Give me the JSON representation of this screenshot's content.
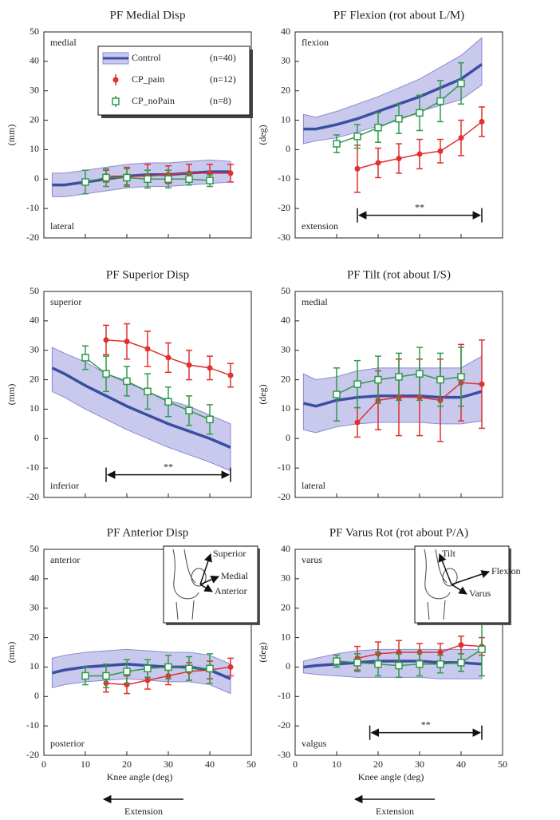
{
  "chart_data": [
    {
      "type": "line",
      "title": "PF Medial Disp",
      "ylabel": "(mm)",
      "top_label": "medial",
      "bottom_label": "lateral",
      "xlim": [
        0,
        50
      ],
      "xticks": [
        0,
        10,
        20,
        30,
        40,
        50
      ],
      "show_xtick_labels": false,
      "ylim": [
        -20,
        50
      ],
      "yticks": [
        -20,
        -10,
        0,
        10,
        20,
        30,
        40,
        50
      ],
      "legend": "upper right",
      "series": [
        {
          "name": "Control",
          "count": "(n=40)",
          "color": "#3a4fa0",
          "marker": "band",
          "x": [
            2,
            5,
            10,
            15,
            20,
            25,
            30,
            35,
            40,
            45
          ],
          "values": [
            -2,
            -2,
            -1,
            0,
            1,
            1.5,
            1.5,
            2,
            2.5,
            2.5
          ],
          "lower": [
            -6,
            -6,
            -5,
            -4,
            -3,
            -2.5,
            -2.5,
            -2,
            -1.5,
            -1
          ],
          "upper": [
            2,
            2,
            3,
            4,
            5,
            5.5,
            5.5,
            6,
            6.5,
            6
          ]
        },
        {
          "name": "CP_pain",
          "count": "(n=12)",
          "color": "#e03030",
          "marker": "circle",
          "x": [
            15,
            20,
            25,
            30,
            35,
            40,
            45
          ],
          "values": [
            1,
            1,
            1,
            1.5,
            2,
            2,
            2
          ],
          "errors": [
            2,
            3,
            4,
            3,
            3,
            3,
            3
          ]
        },
        {
          "name": "CP_noPain",
          "count": "(n=8)",
          "color": "#2e9a4a",
          "marker": "square",
          "x": [
            10,
            15,
            20,
            25,
            30,
            35,
            40
          ],
          "values": [
            -1,
            0.5,
            0.5,
            0,
            0,
            0,
            -0.5
          ],
          "errors": [
            4,
            3,
            3,
            3,
            3,
            2,
            2
          ]
        }
      ]
    },
    {
      "type": "line",
      "title": "PF Flexion (rot about L/M)",
      "ylabel": "(deg)",
      "top_label": "flexion",
      "bottom_label": "extension",
      "xlim": [
        0,
        50
      ],
      "xticks": [
        0,
        10,
        20,
        30,
        40,
        50
      ],
      "show_xtick_labels": false,
      "ylim": [
        -30,
        40
      ],
      "yticks": [
        -30,
        -20,
        -10,
        0,
        10,
        20,
        30,
        40
      ],
      "significance": {
        "label": "**",
        "x": [
          15,
          45
        ]
      },
      "series": [
        {
          "color": "#3a4fa0",
          "marker": "band",
          "x": [
            2,
            5,
            10,
            15,
            20,
            25,
            30,
            35,
            40,
            45
          ],
          "values": [
            7,
            7,
            8.5,
            10.5,
            13,
            15.5,
            18,
            21,
            24,
            29
          ],
          "lower": [
            2,
            3,
            4,
            6,
            8,
            10,
            13,
            15,
            17,
            22
          ],
          "upper": [
            12,
            11,
            13,
            15.5,
            18,
            21,
            24,
            28,
            32,
            38
          ]
        },
        {
          "color": "#e03030",
          "marker": "circle",
          "x": [
            15,
            20,
            25,
            30,
            35,
            40,
            45
          ],
          "values": [
            -6.5,
            -4.5,
            -3,
            -1.5,
            -0.5,
            4,
            9.5
          ],
          "errors": [
            8,
            5,
            5,
            5,
            4,
            6,
            5
          ]
        },
        {
          "color": "#2e9a4a",
          "marker": "square",
          "x": [
            10,
            15,
            20,
            25,
            30,
            35,
            40
          ],
          "values": [
            2,
            4.5,
            7.5,
            10.5,
            12.5,
            16.5,
            22.5
          ],
          "errors": [
            3,
            4,
            5,
            5,
            6,
            7,
            7
          ]
        }
      ]
    },
    {
      "type": "line",
      "title": "PF Superior Disp",
      "ylabel": "(mm)",
      "top_label": "superior",
      "bottom_label": "inferior",
      "xlim": [
        0,
        50
      ],
      "xticks": [
        0,
        10,
        20,
        30,
        40,
        50
      ],
      "show_xtick_labels": false,
      "ylim": [
        -20,
        50
      ],
      "yticks": [
        -20,
        -10,
        0,
        10,
        20,
        30,
        40,
        50
      ],
      "significance": {
        "label": "**",
        "x": [
          15,
          45
        ]
      },
      "series": [
        {
          "color": "#3a4fa0",
          "marker": "band",
          "x": [
            2,
            5,
            10,
            15,
            20,
            25,
            30,
            35,
            40,
            45
          ],
          "values": [
            24,
            22,
            18,
            14.5,
            11,
            8,
            5,
            2.5,
            0,
            -3
          ],
          "lower": [
            16,
            14,
            10,
            6.5,
            3,
            0,
            -3,
            -5.5,
            -8,
            -11
          ],
          "upper": [
            31,
            29,
            26,
            22,
            19,
            16,
            13,
            11,
            8,
            5
          ]
        },
        {
          "color": "#e03030",
          "marker": "circle",
          "x": [
            15,
            20,
            25,
            30,
            35,
            40,
            45
          ],
          "values": [
            33.5,
            33,
            30.5,
            27.5,
            25,
            24,
            21.5
          ],
          "errors": [
            5,
            6,
            6,
            5,
            5,
            4,
            4
          ]
        },
        {
          "color": "#2e9a4a",
          "marker": "square",
          "x": [
            10,
            15,
            20,
            25,
            30,
            35,
            40
          ],
          "values": [
            27.5,
            22,
            19.5,
            16,
            12.5,
            9.5,
            6.5
          ],
          "errors": [
            4,
            6,
            5,
            6,
            5,
            5,
            5
          ]
        }
      ]
    },
    {
      "type": "line",
      "title": "PF Tilt (rot about I/S)",
      "ylabel": "(deg)",
      "top_label": "medial",
      "bottom_label": "lateral",
      "xlim": [
        0,
        50
      ],
      "xticks": [
        0,
        10,
        20,
        30,
        40,
        50
      ],
      "show_xtick_labels": false,
      "ylim": [
        -20,
        50
      ],
      "yticks": [
        -20,
        -10,
        0,
        10,
        20,
        30,
        40,
        50
      ],
      "series": [
        {
          "color": "#3a4fa0",
          "marker": "band",
          "x": [
            2,
            5,
            10,
            15,
            20,
            25,
            30,
            35,
            40,
            45
          ],
          "values": [
            12,
            11,
            13,
            14,
            14.5,
            14.5,
            14.5,
            14,
            14,
            16
          ],
          "lower": [
            3,
            2,
            4,
            5,
            5.5,
            5.5,
            5.5,
            5,
            5,
            6
          ],
          "upper": [
            22,
            20,
            21,
            23,
            24,
            24,
            24,
            24,
            24,
            28
          ]
        },
        {
          "color": "#e03030",
          "marker": "circle",
          "x": [
            15,
            20,
            25,
            30,
            35,
            40,
            45
          ],
          "values": [
            5.5,
            13,
            14,
            14,
            13,
            19,
            18.5
          ],
          "errors": [
            5,
            10,
            13,
            13,
            14,
            13,
            15
          ]
        },
        {
          "color": "#2e9a4a",
          "marker": "square",
          "x": [
            10,
            15,
            20,
            25,
            30,
            35,
            40
          ],
          "values": [
            15,
            18.5,
            20,
            21,
            22,
            20,
            21
          ],
          "errors": [
            9,
            8,
            8,
            8,
            9,
            9,
            10
          ]
        }
      ]
    },
    {
      "type": "line",
      "title": "PF Anterior Disp",
      "ylabel": "(mm)",
      "top_label": "anterior",
      "bottom_label": "posterior",
      "xlabel": "Knee angle (deg)",
      "direction_label": "Extension",
      "xlim": [
        0,
        50
      ],
      "xticks": [
        0,
        10,
        20,
        30,
        40,
        50
      ],
      "show_xtick_labels": true,
      "ylim": [
        -20,
        50
      ],
      "yticks": [
        -20,
        -10,
        0,
        10,
        20,
        30,
        40,
        50
      ],
      "inset_labels": [
        "Superior",
        "Medial",
        "Anterior"
      ],
      "series": [
        {
          "color": "#3a4fa0",
          "marker": "band",
          "x": [
            2,
            5,
            10,
            15,
            20,
            25,
            30,
            35,
            40,
            45
          ],
          "values": [
            8,
            9,
            10,
            10.5,
            11,
            10.5,
            10,
            10,
            9,
            6
          ],
          "lower": [
            3,
            4,
            5,
            5.5,
            6,
            5.5,
            5,
            5,
            4,
            1
          ],
          "upper": [
            13,
            14,
            15,
            15.5,
            16,
            15.5,
            15,
            15,
            14,
            11
          ]
        },
        {
          "color": "#e03030",
          "marker": "circle",
          "x": [
            15,
            20,
            25,
            30,
            35,
            40,
            45
          ],
          "values": [
            4.5,
            4,
            5.5,
            7,
            8.5,
            9,
            10
          ],
          "errors": [
            3,
            3,
            3,
            3,
            3,
            3,
            3
          ]
        },
        {
          "color": "#2e9a4a",
          "marker": "square",
          "x": [
            10,
            15,
            20,
            25,
            30,
            35,
            40
          ],
          "values": [
            7,
            7,
            8.5,
            9.5,
            10,
            9.5,
            9.5
          ],
          "errors": [
            3,
            4,
            4,
            3,
            4,
            4,
            5
          ]
        }
      ]
    },
    {
      "type": "line",
      "title": "PF Varus Rot (rot about P/A)",
      "ylabel": "(deg)",
      "top_label": "varus",
      "bottom_label": "valgus",
      "xlabel": "Knee angle (deg)",
      "direction_label": "Extension",
      "xlim": [
        0,
        50
      ],
      "xticks": [
        0,
        10,
        20,
        30,
        40,
        50
      ],
      "show_xtick_labels": true,
      "ylim": [
        -30,
        40
      ],
      "yticks": [
        -30,
        -20,
        -10,
        0,
        10,
        20,
        30,
        40
      ],
      "significance": {
        "label": "**",
        "x": [
          18,
          45
        ]
      },
      "inset_labels": [
        "Tilt",
        "Flexion",
        "Varus"
      ],
      "series": [
        {
          "color": "#3a4fa0",
          "marker": "band",
          "x": [
            2,
            5,
            10,
            15,
            20,
            25,
            30,
            35,
            40,
            45
          ],
          "values": [
            0,
            0.5,
            1,
            1.5,
            2,
            2,
            2,
            1.5,
            1.5,
            1
          ],
          "lower": [
            -2,
            -2.5,
            -3,
            -3.5,
            -3.5,
            -3.5,
            -3.5,
            -4,
            -4,
            -4
          ],
          "upper": [
            2,
            3,
            4.5,
            5.5,
            6,
            6,
            6,
            6,
            6,
            6
          ]
        },
        {
          "color": "#e03030",
          "marker": "circle",
          "x": [
            15,
            20,
            25,
            30,
            35,
            40,
            45
          ],
          "values": [
            3,
            4.5,
            5,
            5,
            5,
            7.5,
            7
          ],
          "errors": [
            4,
            4,
            4,
            3,
            3,
            3,
            3
          ]
        },
        {
          "color": "#2e9a4a",
          "marker": "square",
          "x": [
            10,
            15,
            20,
            25,
            30,
            35,
            40,
            45
          ],
          "values": [
            2,
            1.5,
            1,
            0.5,
            1,
            1,
            1.5,
            6
          ],
          "errors": [
            2,
            3,
            4,
            4,
            4,
            3,
            3,
            9
          ]
        }
      ]
    }
  ]
}
